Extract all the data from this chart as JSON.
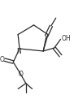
{
  "bg_color": "#ffffff",
  "line_color": "#2b2b2b",
  "line_width": 0.9,
  "figsize": [
    0.91,
    1.22
  ],
  "dpi": 100,
  "xlim": [
    0,
    91
  ],
  "ylim": [
    0,
    122
  ]
}
